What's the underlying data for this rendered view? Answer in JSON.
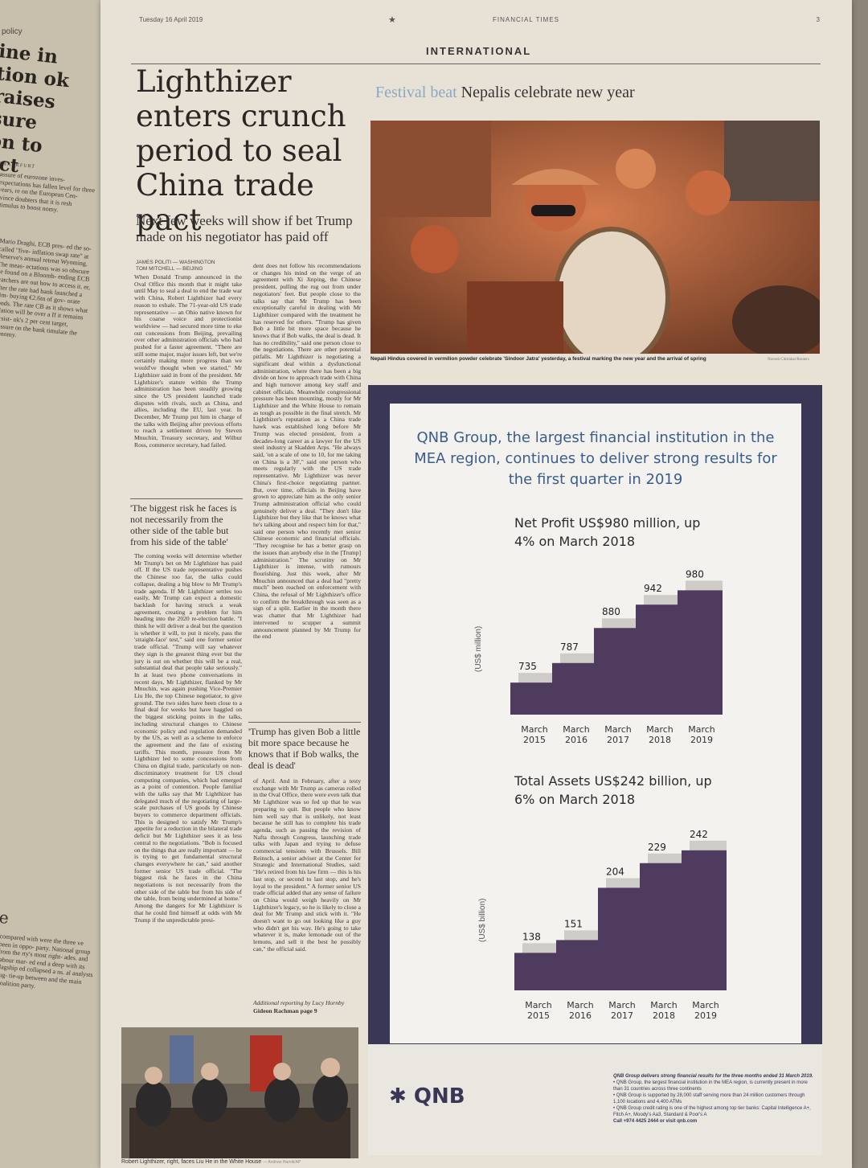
{
  "left_page": {
    "kicker": "policy",
    "headline": "ine in tion ok raises sure on to act",
    "dateline": "FRANKFURT",
    "text_top": "assure of eurozone inves- expectations has fallen level for three years, re on the European Cen- rvince doubters that it is resh stimulus to boost nomy.",
    "text_mid": "Mario Draghi, ECB pres- ed the so-called \"five- inflation swap rate\" at Reserve's annual retreat Wyoming. The meas- ectations was so obscure be found on a Bloomb- ending ECB watchers are out how to access it. er, after the rate had bank launched a stim- buying €2.6tn of gov- orate bonds. The rate CB as it shows what nflation will be over a If it remains persist- nk's 2 per cent target, pressure on the bank timulate the economy.",
    "section2_head": "e",
    "text_bottom": "compared with were the three ve been in oppo- party. National group from the rty's most right- ades. and labour mar- ed end a deep with its flagship ed collapsed a ns. al analysts sug- tie-up between and the main Coalition party."
  },
  "masthead": {
    "date": "Tuesday 16 April 2019",
    "star": "★",
    "brand": "FINANCIAL TIMES",
    "page_number": "3",
    "section": "INTERNATIONAL"
  },
  "article": {
    "headline": "Lighthizer enters crunch period to seal China trade pact",
    "standfirst": "Next few weeks will show if bet Trump made on his negotiator has paid off",
    "byline1": "JAMES POLITI — WASHINGTON",
    "byline2": "TOM MITCHELL — BEIJING",
    "col1": "When Donald Trump announced in the Oval Office this month that it might take until May to seal a deal to end the trade war with China, Robert Lighthizer had every reason to exhale. The 71-year-old US trade representative — an Ohio native known for his coarse voice and protectionist worldview — had secured more time to eke out concessions from Beijing, prevailing over other administration officials who had pushed for a faster agreement. \"There are still some major, major issues left, but we're certainly making more progress than we would've thought when we started,\" Mr Lighthizer said in front of the president. Mr Lighthizer's stature within the Trump administration has been steadily growing since the US president launched trade disputes with rivals, such as China, and allies, including the EU, last year. In December, Mr Trump put him in charge of the talks with Beijing after previous efforts to reach a settlement driven by Steven Mnuchin, Treasury secretary, and Wilbur Ross, commerce secretary, had failed.",
    "pull1": "'The biggest risk he faces is not necessarily from the other side of the table but from his side of the table'",
    "col1b": "The coming weeks will determine whether Mr Trump's bet on Mr Lighthizer has paid off. If the US trade representative pushes the Chinese too far, the talks could collapse, dealing a big blow to Mr Trump's trade agenda. If Mr Lighthizer settles too easily, Mr Trump can expect a domestic backlash for having struck a weak agreement, creating a problem for him heading into the 2020 re-election battle. \"I think he will deliver a deal but the question is whether it will, to put it nicely, pass the 'straight-face' test,\" said one former senior trade official. \"Trump will say whatever they sign is the greatest thing ever but the jury is out on whether this will be a real, substantial deal that people take seriously.\" In at least two phone conversations in recent days, Mr Lighthizer, flanked by Mr Mnuchin, was again pushing Vice-Premier Liu He, the top Chinese negotiator, to give ground. The two sides have been close to a final deal for weeks but have haggled on the biggest sticking points in the talks, including structural changes to Chinese economic policy and regulation demanded by the US, as well as a scheme to enforce the agreement and the fate of existing tariffs. This month, pressure from Mr Lighthizer led to some concessions from China on digital trade, particularly on non-discriminatory treatment for US cloud computing companies, which had emerged as a point of contention. People familiar with the talks say that Mr Lighthizer has delegated much of the negotiating of large-scale purchases of US goods by Chinese buyers to commerce department officials. This is designed to satisfy Mr Trump's appetite for a reduction in the bilateral trade deficit but Mr Lighthizer sees it as less central to the negotiations. \"Bob is focused on the things that are really important — he is trying to get fundamental structural changes everywhere he can,\" said another former senior US trade official. \"The biggest risk he faces in the China negotiations is not necessarily from the other side of the table but from his side of the table, from being undermined at home.\" Among the dangers for Mr Lighthizer is that he could find himself at odds with Mr Trump if the unpredictable presi-",
    "col2": "dent does not follow his recommendations or changes his mind on the verge of an agreement with Xi Jinping, the Chinese president, pulling the rug out from under negotiators' feet. But people close to the talks say that Mr Trump has been exceptionally careful in dealing with Mr Lighthizer compared with the treatment he has reserved for others. \"Trump has given Bob a little bit more space because he knows that if Bob walks, the deal is dead. It has no credibility,\" said one person close to the negotiations. There are other potential pitfalls. Mr Lighthizer is negotiating a significant deal within a dysfunctional administration, where there has been a big divide on how to approach trade with China and high turnover among key staff and cabinet officials. Meanwhile congressional pressure has been mounting, mostly for Mr Lighthizer and the White House to remain as tough as possible in the final stretch. Mr Lighthizer's reputation as a China trade hawk was established long before Mr Trump was elected president, from a decades-long career as a lawyer for the US steel industry at Skadden Arps. \"He always said, 'on a scale of one to 10, for me taking on China is a 30',\" said one person who meets regularly with the US trade representative. Mr Lighthizer was never China's first-choice negotiating partner. But, over time, officials in Beijing have grown to appreciate him as the only senior Trump administration official who could genuinely deliver a deal. \"They don't like Lighthizer but they like that he knows what he's talking about and respect him for that,\" said one person who recently met senior Chinese economic and financial officials. \"They recognise he has a better grasp on the issues than anybody else in the [Trump] administration.\" The scrutiny on Mr Lighthizer is intense, with rumours flourishing. Just this week, after Mr Mnuchin announced that a deal had \"pretty much\" been reached on enforcement with China, the refusal of Mr Lighthizer's office to confirm the breakthrough was seen as a sign of a split. Earlier in the month there was chatter that Mr Lighthizer had intervened to scupper a summit announcement planned by Mr Trump for the end",
    "pull2": "'Trump has given Bob a little bit more space because he knows that if Bob walks, the deal is dead'",
    "col2b": "of April. And in February, after a testy exchange with Mr Trump as cameras rolled in the Oval Office, there were even talk that Mr Lighthizer was so fed up that he was preparing to quit. But people who know him well say that is unlikely, not least because he still has to complete his trade agenda, such as passing the revision of Nafta through Congress, launching trade talks with Japan and trying to defuse commercial tensions with Brussels. Bill Reinsch, a senior adviser at the Center for Strategic and International Studies, said: \"He's retired from his law firm — this is his last stop, or second to last stop, and he's loyal to the president.\" A former senior US trade official added that any sense of failure on China would weigh heavily on Mr Lighthizer's legacy, so he is likely to close a deal for Mr Trump and stick with it. \"He doesn't want to go out looking like a guy who didn't get his way. He's going to take whatever it is, make lemonade out of the lemons, and sell it the best he possibly can,\" the official said.",
    "additional": "Additional reporting by Lucy Hornby",
    "seealso": "Gideon Rachman page 9",
    "photo_caption": "Robert Lighthizer, right, faces Liu He in the White House",
    "photo_credit": "— Andrew Harnik/AP"
  },
  "festival": {
    "kicker": "Festival beat",
    "title": "Nepalis celebrate new year",
    "caption": "Nepali Hindus covered in vermilion powder celebrate 'Sindoor Jatra' yesterday, a festival marking the new year and the arrival of spring",
    "credit": "Navesh Chitrakar/Reuters"
  },
  "advert": {
    "headline": "QNB Group, the largest financial institution in the MEA region, continues to deliver strong results for the first quarter in 2019",
    "logo": "QNB",
    "note_title": "QNB Group delivers strong financial results for the three months ended 31 March 2019.",
    "note_1": "• QNB Group, the largest financial institution in the MEA region, is currently present in more than 31 countries across three continents",
    "note_2": "• QNB Group is supported by 28,000 staff serving more than 24 million customers through 1,100 locations and 4,400 ATMs",
    "note_3": "• QNB Group credit rating is one of the highest among top tier banks: Capital Intelligence A+, Fitch A+, Moody's Aa3, Standard & Poor's A",
    "note_4": "Call +974 4425 2444 or visit qnb.com",
    "colors": {
      "bar_dark": "#4f3b5e",
      "bar_light": "#cfcbc7",
      "frame": "#3a3656",
      "title_blue": "#3a5d8c"
    }
  },
  "chart_data": [
    {
      "type": "bar",
      "title": "Net Profit US$980 million, up 4% on March 2018",
      "ylabel": "(US$ million)",
      "xlabel": "",
      "categories": [
        "March 2015",
        "March 2016",
        "March 2017",
        "March 2018",
        "March 2019"
      ],
      "values": [
        735,
        787,
        880,
        942,
        980
      ],
      "ylim": [
        650,
        1000
      ],
      "grid": false
    },
    {
      "type": "bar",
      "title": "Total Assets US$242 billion, up 6% on March 2018",
      "ylabel": "(US$ billion)",
      "xlabel": "",
      "categories": [
        "March 2015",
        "March 2016",
        "March 2017",
        "March 2018",
        "March 2019"
      ],
      "values": [
        138,
        151,
        204,
        229,
        242
      ],
      "ylim": [
        100,
        250
      ],
      "grid": false
    }
  ]
}
